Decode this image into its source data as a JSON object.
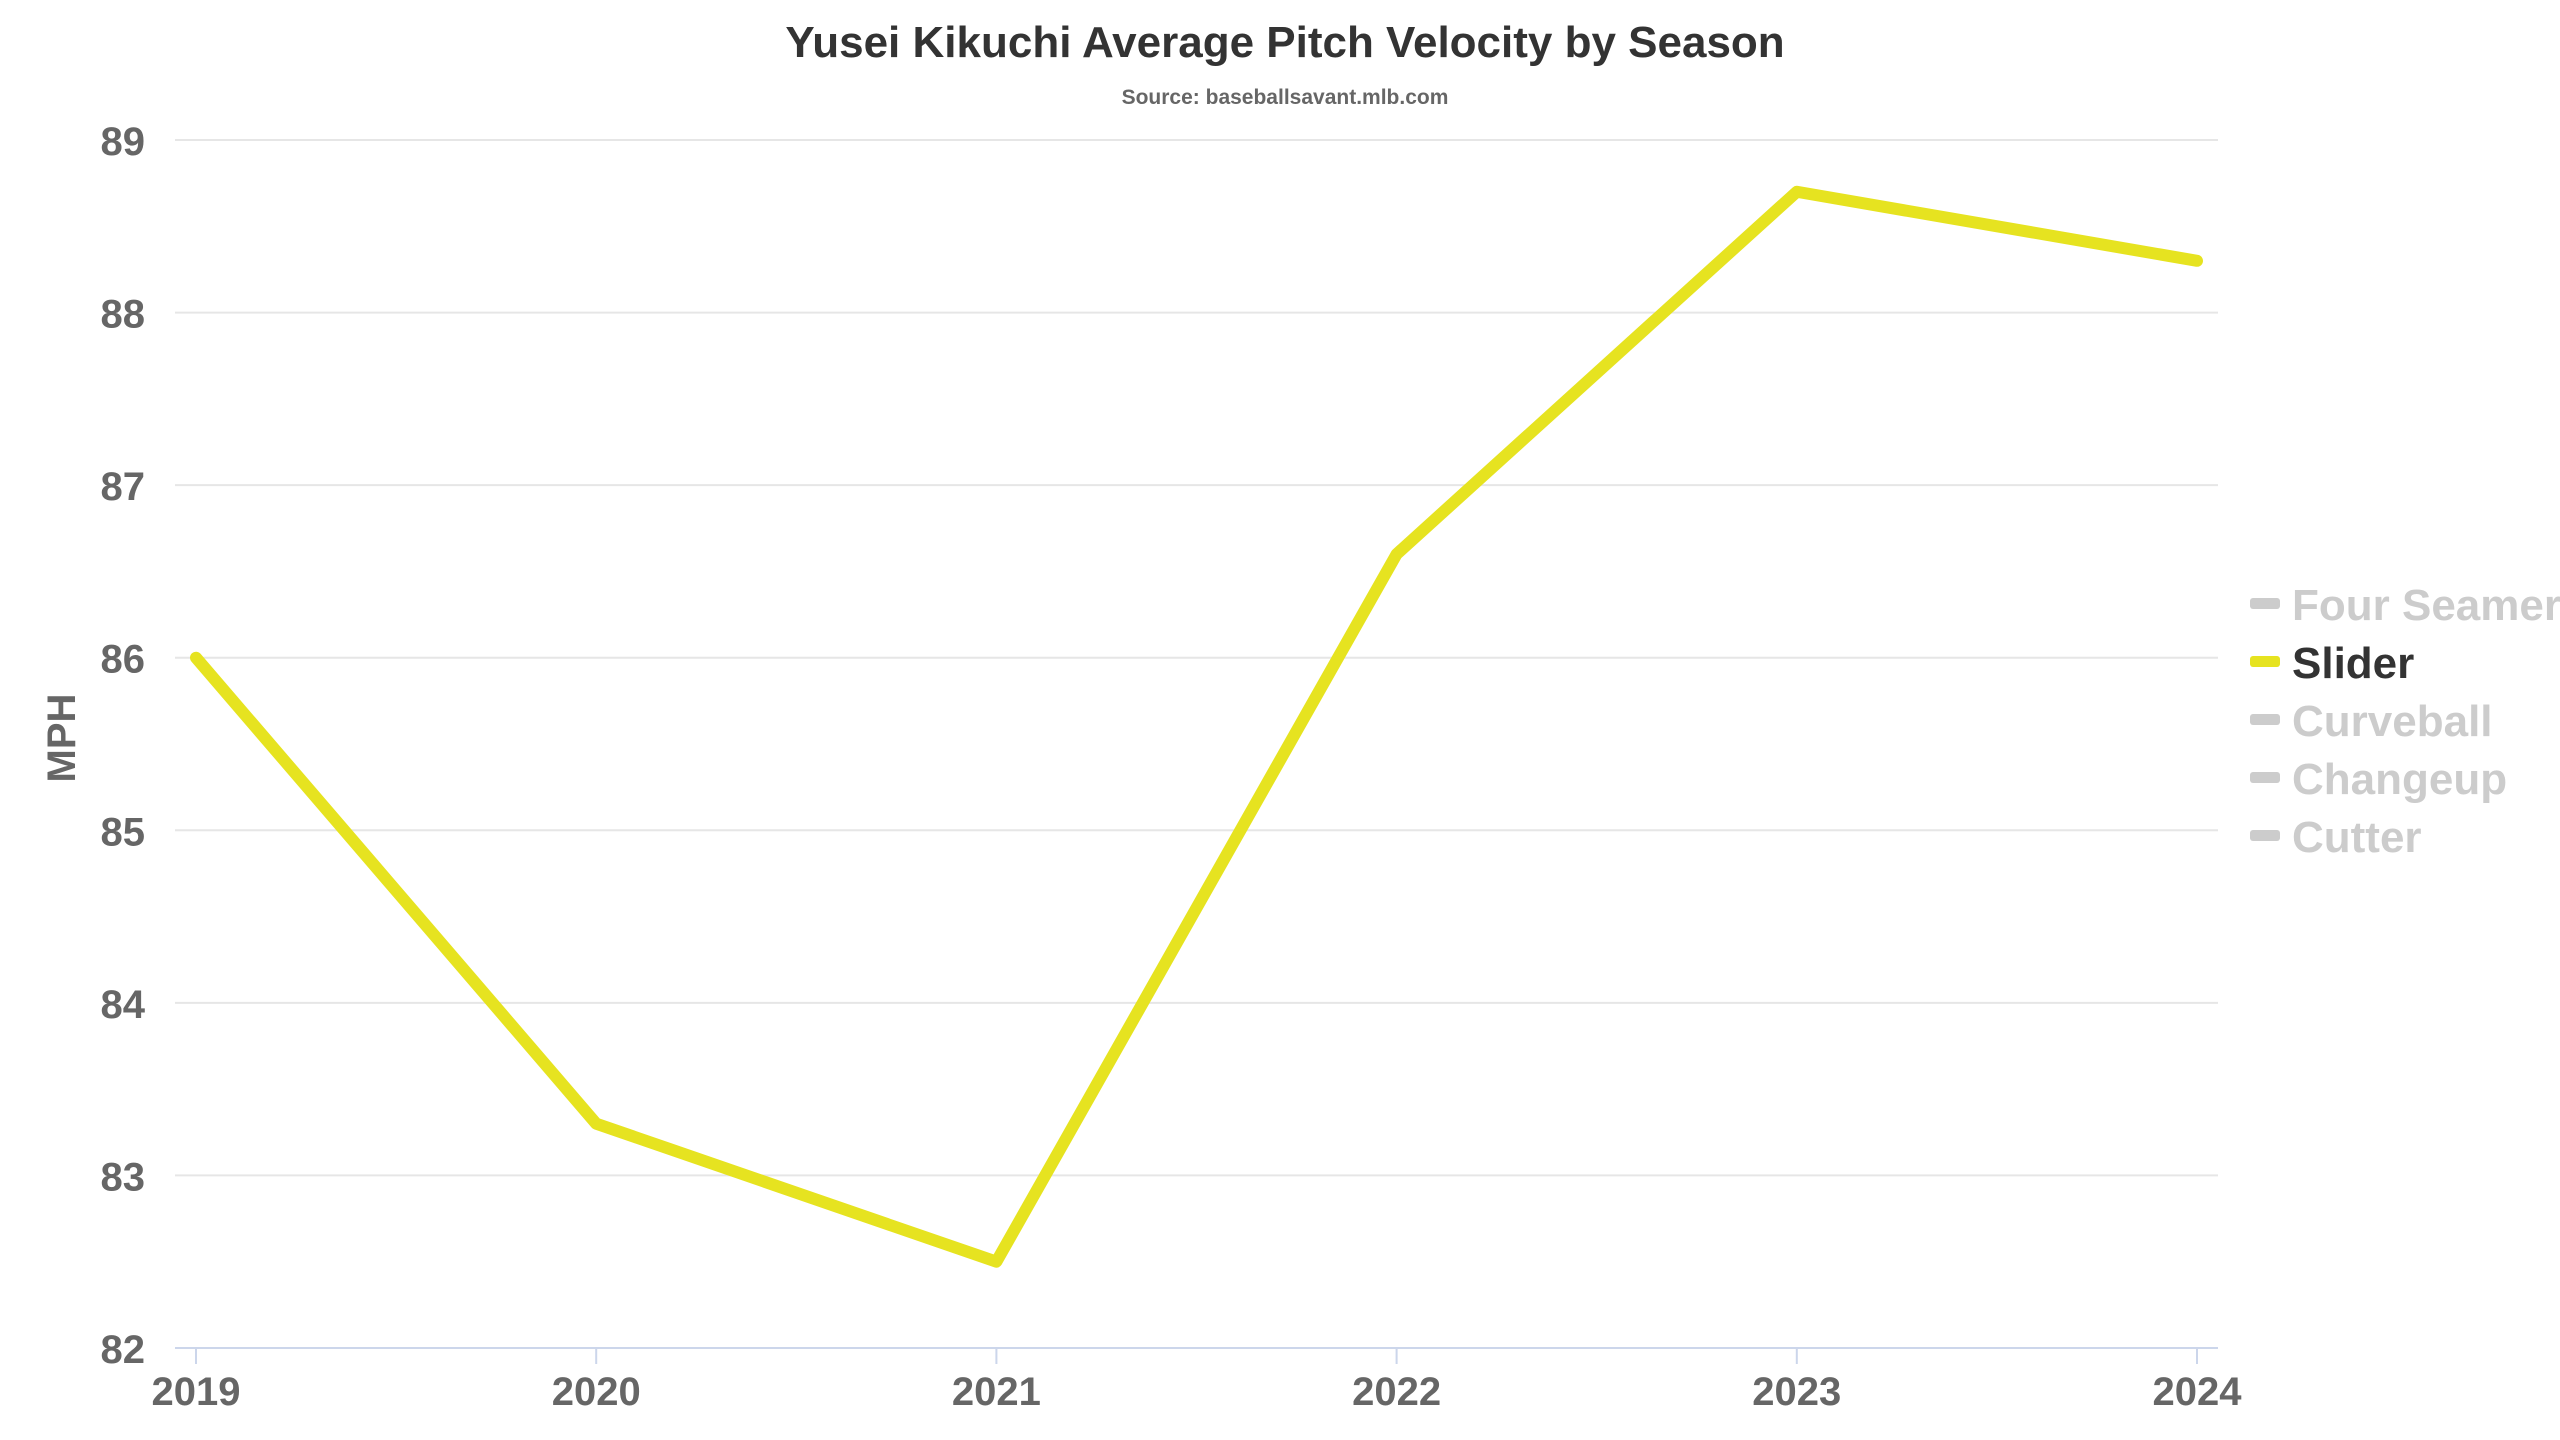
{
  "chart_data": {
    "type": "line",
    "title": "Yusei Kikuchi Average Pitch Velocity by Season",
    "subtitle": "Source: baseballsavant.mlb.com",
    "xlabel": "",
    "ylabel": "MPH",
    "x": [
      "2019",
      "2020",
      "2021",
      "2022",
      "2023",
      "2024"
    ],
    "ylim": [
      82,
      89
    ],
    "yticks": [
      "82",
      "83",
      "84",
      "85",
      "86",
      "87",
      "88",
      "89"
    ],
    "grid": true,
    "legend_position": "right",
    "series": [
      {
        "name": "Slider",
        "color": "#e6e320",
        "visible": true,
        "values": [
          86.0,
          83.3,
          82.5,
          86.6,
          88.7,
          88.3
        ]
      }
    ],
    "legend": [
      {
        "name": "Four Seamer",
        "color": "#cccccc",
        "active": false
      },
      {
        "name": "Slider",
        "color": "#e6e320",
        "active": true
      },
      {
        "name": "Curveball",
        "color": "#cccccc",
        "active": false
      },
      {
        "name": "Changeup",
        "color": "#cccccc",
        "active": false
      },
      {
        "name": "Cutter",
        "color": "#cccccc",
        "active": false
      }
    ],
    "colors": {
      "grid": "#e6e6e6",
      "axis": "#ccd6eb",
      "active_legend_text": "#333333",
      "inactive_legend_text": "#cccccc"
    }
  }
}
